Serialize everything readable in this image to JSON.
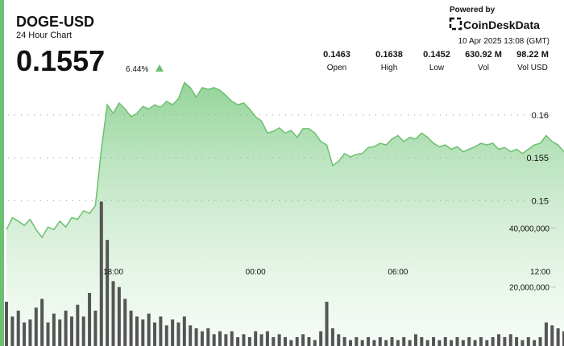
{
  "header": {
    "symbol": "DOGE-USD",
    "subtitle": "24 Hour Chart",
    "price": "0.1557",
    "change": "6.44%",
    "powered_by": "Powered by",
    "brand": "CoinDeskData",
    "timestamp": "10 Apr 2025 13:08 (GMT)"
  },
  "stats": [
    {
      "value": "0.1463",
      "label": "Open"
    },
    {
      "value": "0.1638",
      "label": "High"
    },
    {
      "value": "0.1452",
      "label": "Low"
    },
    {
      "value": "630.92 M",
      "label": "Vol"
    },
    {
      "value": "98.22 M",
      "label": "Vol USD"
    }
  ],
  "chart_data": {
    "type": "line",
    "categories": [
      null,
      null,
      null,
      null,
      null,
      null,
      null,
      null,
      null,
      null,
      null,
      null,
      null,
      null,
      null,
      null,
      null,
      null,
      "18:00",
      null,
      null,
      null,
      null,
      null,
      null,
      null,
      null,
      null,
      null,
      null,
      null,
      null,
      null,
      null,
      null,
      null,
      null,
      null,
      null,
      null,
      null,
      null,
      "00:00",
      null,
      null,
      null,
      null,
      null,
      null,
      null,
      null,
      null,
      null,
      null,
      null,
      null,
      null,
      null,
      null,
      null,
      null,
      null,
      null,
      null,
      null,
      null,
      "06:00",
      null,
      null,
      null,
      null,
      null,
      null,
      null,
      null,
      null,
      null,
      null,
      null,
      null,
      null,
      null,
      null,
      null,
      null,
      null,
      null,
      null,
      null,
      null,
      "12:00",
      null,
      null,
      null,
      null
    ],
    "series": [
      {
        "color": "#6cc070",
        "values": [
          0.1466,
          0.148,
          0.1476,
          0.1471,
          0.1478,
          0.1466,
          0.1457,
          0.1469,
          0.1466,
          0.1476,
          0.1469,
          0.148,
          0.1478,
          0.1488,
          0.1485,
          0.1494,
          0.156,
          0.1612,
          0.1602,
          0.1614,
          0.1607,
          0.1598,
          0.1602,
          0.161,
          0.1607,
          0.1612,
          0.1609,
          0.1616,
          0.1612,
          0.1619,
          0.1638,
          0.1632,
          0.1621,
          0.1632,
          0.163,
          0.1632,
          0.1629,
          0.1623,
          0.1616,
          0.1612,
          0.1614,
          0.1607,
          0.1598,
          0.1593,
          0.1579,
          0.1581,
          0.1585,
          0.1579,
          0.1582,
          0.1574,
          0.1584,
          0.1584,
          0.1579,
          0.1569,
          0.1565,
          0.1541,
          0.1546,
          0.1555,
          0.1551,
          0.1554,
          0.1555,
          0.1562,
          0.1563,
          0.1567,
          0.1565,
          0.1572,
          0.1576,
          0.1569,
          0.1574,
          0.1572,
          0.1579,
          0.1574,
          0.1567,
          0.1563,
          0.1565,
          0.156,
          0.1563,
          0.1557,
          0.156,
          0.1563,
          0.1567,
          0.1565,
          0.1567,
          0.156,
          0.1562,
          0.1557,
          0.156,
          0.1555,
          0.156,
          0.1565,
          0.1567,
          0.1576,
          0.1569,
          0.1565,
          0.1557
        ]
      },
      {
        "color": "#555555",
        "axis": "y2",
        "values": [
          15000000,
          10000000,
          12000000,
          8000000,
          9000000,
          13000000,
          16000000,
          8000000,
          11000000,
          9000000,
          12000000,
          10000000,
          14000000,
          10000000,
          18000000,
          12000000,
          49000000,
          36000000,
          22000000,
          20000000,
          16000000,
          12000000,
          10000000,
          9000000,
          11000000,
          8000000,
          10000000,
          7000000,
          9000000,
          8000000,
          10000000,
          7000000,
          6000000,
          5000000,
          6000000,
          4000000,
          5000000,
          4000000,
          5000000,
          3000000,
          4000000,
          3000000,
          5000000,
          4000000,
          5000000,
          3000000,
          4000000,
          3000000,
          2000000,
          3000000,
          4000000,
          3000000,
          2000000,
          5000000,
          15000000,
          6000000,
          4000000,
          3000000,
          2000000,
          3000000,
          2000000,
          3000000,
          2000000,
          3000000,
          2000000,
          3000000,
          2000000,
          3000000,
          2000000,
          4000000,
          3000000,
          2000000,
          3000000,
          2000000,
          3000000,
          2000000,
          3000000,
          2000000,
          3000000,
          2000000,
          3000000,
          2000000,
          3000000,
          4000000,
          3000000,
          4000000,
          3000000,
          2000000,
          3000000,
          2000000,
          3000000,
          8000000,
          7000000,
          6000000,
          5000000
        ]
      }
    ],
    "ylim": [
      0.133,
      0.1678
    ],
    "yticks": [
      0.15,
      0.155,
      0.16
    ],
    "y2lim": [
      0,
      101000000
    ],
    "y2ticks": [
      {
        "value": 40000000,
        "label": "40,000,000"
      },
      {
        "value": 20000000,
        "label": "20,000,000"
      }
    ],
    "grid": true
  }
}
